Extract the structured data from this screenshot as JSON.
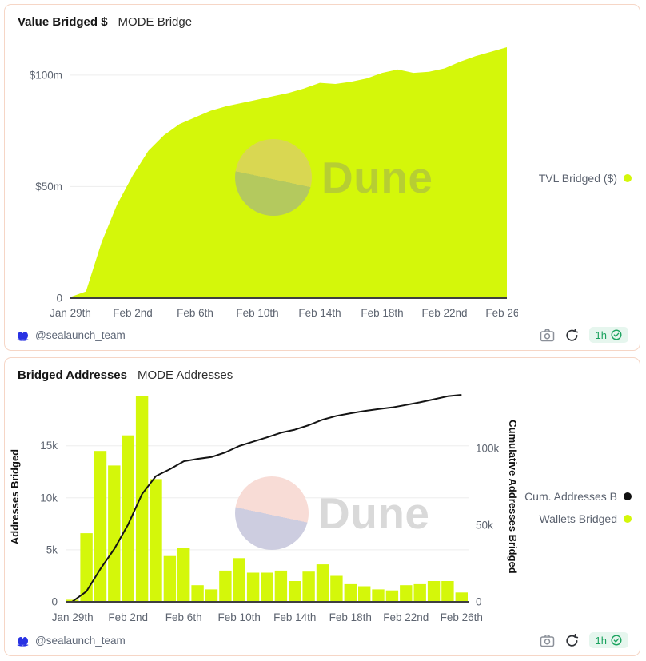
{
  "header1": {
    "title": "Value Bridged $",
    "subtitle": "MODE Bridge"
  },
  "header2": {
    "title": "Bridged Addresses",
    "subtitle": "MODE Addresses"
  },
  "footer": {
    "handle": "@sealaunch_team",
    "refresh_age": "1h"
  },
  "watermark": {
    "text": "Dune"
  },
  "legend1": {
    "items": [
      {
        "label": "TVL Bridged ($)",
        "color": "#d4f70a"
      }
    ]
  },
  "legend2": {
    "items": [
      {
        "label": "Cum. Addresses B",
        "color": "#111111"
      },
      {
        "label": "Wallets Bridged",
        "color": "#d4f70a"
      }
    ]
  },
  "colors": {
    "accent_green": "#d4f70a",
    "line_black": "#141414",
    "panel_border": "#f6d6c6",
    "badge_green": "#1ca35f",
    "badge_bg": "#e6f6ee",
    "logo_blue": "#2832e3",
    "tick_text": "#5d6470",
    "gridline": "#ededed",
    "baseline": "#3f3f3f"
  },
  "chart_data": [
    {
      "type": "area",
      "title": "Value Bridged $",
      "subtitle": "MODE Bridge",
      "categories": [
        "Jan 29",
        "Jan 30",
        "Jan 31",
        "Feb 1",
        "Feb 2",
        "Feb 3",
        "Feb 4",
        "Feb 5",
        "Feb 6",
        "Feb 7",
        "Feb 8",
        "Feb 9",
        "Feb 10",
        "Feb 11",
        "Feb 12",
        "Feb 13",
        "Feb 14",
        "Feb 15",
        "Feb 16",
        "Feb 17",
        "Feb 18",
        "Feb 19",
        "Feb 20",
        "Feb 21",
        "Feb 22",
        "Feb 23",
        "Feb 24",
        "Feb 25",
        "Feb 26"
      ],
      "series": [
        {
          "name": "TVL Bridged ($)",
          "color": "#d4f70a",
          "unit": "$m",
          "values": [
            0.5,
            3,
            25,
            42,
            55,
            66,
            73,
            78,
            81,
            84,
            86,
            87.5,
            89,
            90.5,
            92,
            94,
            96.5,
            96,
            97,
            98.5,
            101,
            102.5,
            101,
            101.5,
            103,
            106,
            108.5,
            110.5,
            112.5
          ]
        }
      ],
      "ylabel": "",
      "ylim": [
        0,
        115
      ],
      "y_tick_values": [
        0,
        50,
        100
      ],
      "y_tick_labels": [
        "0",
        "$50m",
        "$100m"
      ],
      "x_tick_indices": [
        0,
        4,
        8,
        12,
        16,
        20,
        24,
        28
      ],
      "x_ticks": [
        "Jan 29th",
        "Feb 2nd",
        "Feb 6th",
        "Feb 10th",
        "Feb 14th",
        "Feb 18th",
        "Feb 22nd",
        "Feb 26th"
      ],
      "grid": true,
      "legend_position": "right"
    },
    {
      "type": "bar+line",
      "title": "Bridged Addresses",
      "subtitle": "MODE Addresses",
      "categories": [
        "Jan 29",
        "Jan 30",
        "Jan 31",
        "Feb 1",
        "Feb 2",
        "Feb 3",
        "Feb 4",
        "Feb 5",
        "Feb 6",
        "Feb 7",
        "Feb 8",
        "Feb 9",
        "Feb 10",
        "Feb 11",
        "Feb 12",
        "Feb 13",
        "Feb 14",
        "Feb 15",
        "Feb 16",
        "Feb 17",
        "Feb 18",
        "Feb 19",
        "Feb 20",
        "Feb 21",
        "Feb 22",
        "Feb 23",
        "Feb 24",
        "Feb 25",
        "Feb 26"
      ],
      "series": [
        {
          "name": "Wallets Bridged",
          "type": "bar",
          "axis": "left",
          "color": "#d4f70a",
          "values": [
            200,
            6600,
            14500,
            13100,
            16000,
            19800,
            11800,
            4400,
            5200,
            1600,
            1200,
            3000,
            4200,
            2800,
            2800,
            3000,
            2000,
            2900,
            3600,
            2500,
            1700,
            1500,
            1200,
            1100,
            1600,
            1700,
            2000,
            2000,
            900
          ]
        },
        {
          "name": "Cum. Addresses B",
          "type": "line",
          "axis": "right",
          "color": "#141414",
          "values": [
            200,
            6800,
            21300,
            34400,
            50400,
            70200,
            82000,
            86400,
            91600,
            93200,
            94400,
            97400,
            101600,
            104400,
            107200,
            110200,
            112200,
            115100,
            118700,
            121200,
            122900,
            124400,
            125600,
            126700,
            128300,
            130000,
            132000,
            134000,
            134900
          ]
        }
      ],
      "left_axis": {
        "label": "Addresses Bridged",
        "max": 20200,
        "tick_values": [
          0,
          5000,
          10000,
          15000
        ],
        "tick_labels": [
          "0",
          "5k",
          "10k",
          "15k"
        ]
      },
      "right_axis": {
        "label": "Cumulative Addresses Bridged",
        "max": 137000,
        "tick_values": [
          0,
          50000,
          100000
        ],
        "tick_labels": [
          "0",
          "50k",
          "100k"
        ]
      },
      "x_tick_indices": [
        0,
        4,
        8,
        12,
        16,
        20,
        24,
        28
      ],
      "x_ticks": [
        "Jan 29th",
        "Feb 2nd",
        "Feb 6th",
        "Feb 10th",
        "Feb 14th",
        "Feb 18th",
        "Feb 22nd",
        "Feb 26th"
      ],
      "grid": true,
      "legend_position": "right"
    }
  ]
}
